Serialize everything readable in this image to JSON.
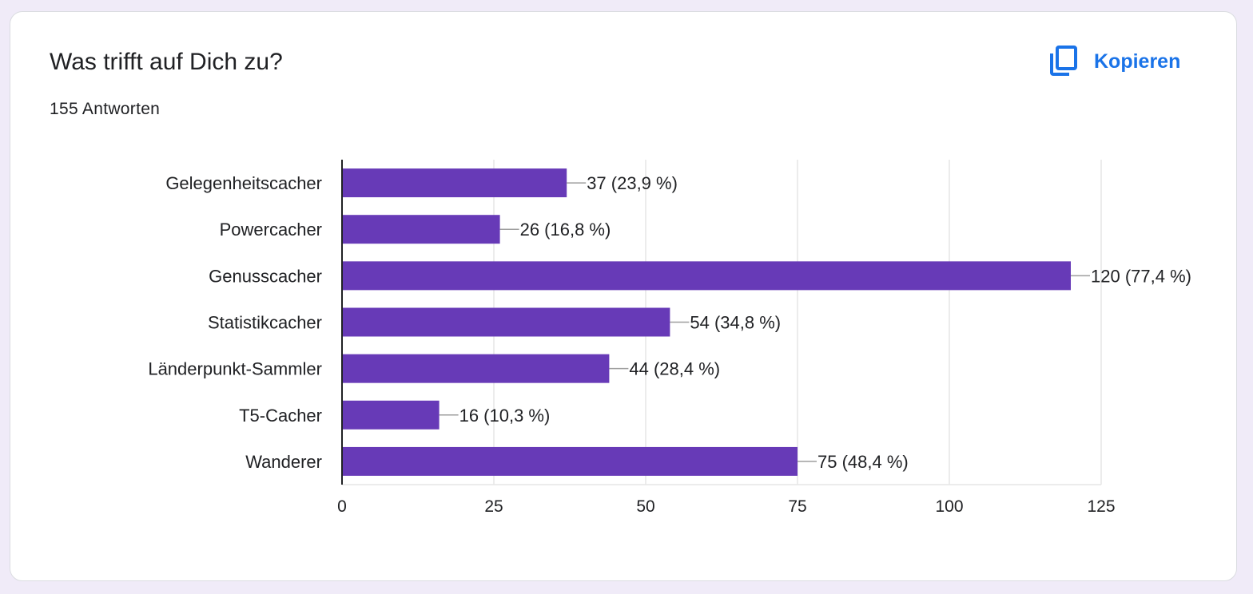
{
  "card": {
    "title": "Was trifft auf Dich zu?",
    "response_count": "155 Antworten",
    "copy_label": "Kopieren",
    "copy_icon": "copy-icon"
  },
  "colors": {
    "bar": "#673ab7",
    "accent": "#1a73e8",
    "background": "#f0ebf8",
    "gridline": "#e6e6e6",
    "axis": "#202124"
  },
  "chart_data": {
    "type": "bar",
    "orientation": "horizontal",
    "categories": [
      "Gelegenheitscacher",
      "Powercacher",
      "Genusscacher",
      "Statistikcacher",
      "Länderpunkt-Sammler",
      "T5-Cacher",
      "Wanderer"
    ],
    "values": [
      37,
      26,
      120,
      54,
      44,
      16,
      75
    ],
    "data_labels": [
      "37 (23,9 %)",
      "26 (16,8 %)",
      "120 (77,4 %)",
      "54 (34,8 %)",
      "44 (28,4 %)",
      "16 (10,3 %)",
      "75 (48,4 %)"
    ],
    "xticks": [
      0,
      25,
      50,
      75,
      100,
      125
    ],
    "xtick_labels": [
      "0",
      "25",
      "50",
      "75",
      "100",
      "125"
    ],
    "xlim": [
      0,
      125
    ],
    "grid": true,
    "legend": "none"
  }
}
